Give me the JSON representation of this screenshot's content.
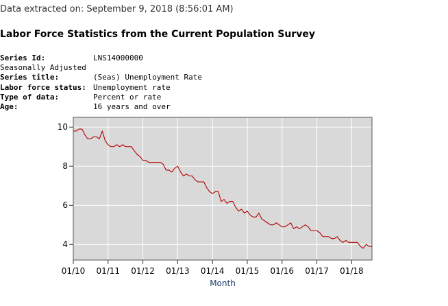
{
  "header": {
    "extracted": "Data extracted on: September 9, 2018 (8:56:01 AM)",
    "title": "Labor Force Statistics from the Current Population Survey"
  },
  "series_info": {
    "series_id_label": "Series Id:",
    "series_id": "LNS14000000",
    "adjustment": "Seasonally Adjusted",
    "series_title_label": "Series title:",
    "series_title": "(Seas) Unemployment Rate",
    "lf_status_label": "Labor force status:",
    "lf_status": "Unemployment rate",
    "type_label": "Type of data:",
    "type": "Percent or rate",
    "age_label": "Age:",
    "age": "16 years and over"
  },
  "chart_data": {
    "type": "line",
    "title": "",
    "xlabel": "Month",
    "ylabel": "",
    "start": "2010-01",
    "xlim": [
      0,
      103
    ],
    "ylim": [
      3.2,
      10.5
    ],
    "x_ticks": [
      {
        "month_index": 0,
        "label": "01/10"
      },
      {
        "month_index": 12,
        "label": "01/11"
      },
      {
        "month_index": 24,
        "label": "01/12"
      },
      {
        "month_index": 36,
        "label": "01/13"
      },
      {
        "month_index": 48,
        "label": "01/14"
      },
      {
        "month_index": 60,
        "label": "01/15"
      },
      {
        "month_index": 72,
        "label": "01/16"
      },
      {
        "month_index": 84,
        "label": "01/17"
      },
      {
        "month_index": 96,
        "label": "01/18"
      }
    ],
    "y_ticks": [
      {
        "value": 4,
        "label": "4"
      },
      {
        "value": 6,
        "label": "6"
      },
      {
        "value": 8,
        "label": "8"
      },
      {
        "value": 10,
        "label": "10"
      }
    ],
    "grid": true,
    "series": [
      {
        "name": "Unemployment Rate",
        "color": "#b30000",
        "values": [
          9.8,
          9.8,
          9.9,
          9.9,
          9.6,
          9.4,
          9.4,
          9.5,
          9.5,
          9.4,
          9.8,
          9.3,
          9.1,
          9.0,
          9.0,
          9.1,
          9.0,
          9.1,
          9.0,
          9.0,
          9.0,
          8.8,
          8.6,
          8.5,
          8.3,
          8.3,
          8.2,
          8.2,
          8.2,
          8.2,
          8.2,
          8.1,
          7.8,
          7.8,
          7.7,
          7.9,
          8.0,
          7.7,
          7.5,
          7.6,
          7.5,
          7.5,
          7.3,
          7.2,
          7.2,
          7.2,
          6.9,
          6.7,
          6.6,
          6.7,
          6.7,
          6.2,
          6.3,
          6.1,
          6.2,
          6.2,
          5.9,
          5.7,
          5.8,
          5.6,
          5.7,
          5.5,
          5.4,
          5.4,
          5.6,
          5.3,
          5.2,
          5.1,
          5.0,
          5.0,
          5.1,
          5.0,
          4.9,
          4.9,
          5.0,
          5.1,
          4.8,
          4.9,
          4.8,
          4.9,
          5.0,
          4.9,
          4.7,
          4.7,
          4.7,
          4.6,
          4.4,
          4.4,
          4.4,
          4.3,
          4.3,
          4.4,
          4.2,
          4.1,
          4.2,
          4.1,
          4.1,
          4.1,
          4.1,
          3.9,
          3.8,
          4.0,
          3.9,
          3.9
        ]
      }
    ]
  }
}
